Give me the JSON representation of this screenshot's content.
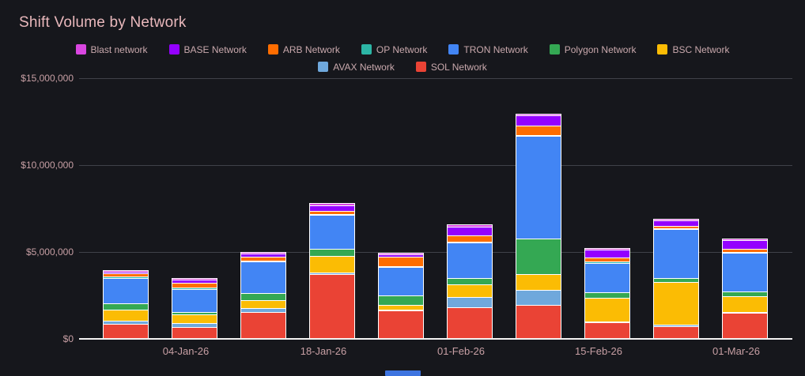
{
  "title": "Shift Volume by Network",
  "colors": {
    "background": "#16171c",
    "title_text": "#e9b8bc",
    "axis_text": "#c79fa4",
    "legend_text": "#c9a9ad",
    "gridline": "#404249",
    "axis_line": "#f4f2f2",
    "bar_border": "#ffffff",
    "scrollbar_thumb": "#3d74e0"
  },
  "legend": {
    "items": [
      {
        "label": "Blast network",
        "color": "#d946e0"
      },
      {
        "label": "BASE Network",
        "color": "#9400ff"
      },
      {
        "label": "ARB Network",
        "color": "#ff6d00"
      },
      {
        "label": "OP Network",
        "color": "#2cb5a5"
      },
      {
        "label": "TRON Network",
        "color": "#4285f4"
      },
      {
        "label": "Polygon Network",
        "color": "#34a853"
      },
      {
        "label": "BSC Network",
        "color": "#fbbc04"
      },
      {
        "label": "AVAX Network",
        "color": "#6fa8dc"
      },
      {
        "label": "SOL Network",
        "color": "#ea4335"
      }
    ]
  },
  "y_axis": {
    "tick_labels": [
      "$15,000,000",
      "$10,000,000",
      "$5,000,000",
      "$0"
    ],
    "tick_values": [
      15000000,
      10000000,
      5000000,
      0
    ]
  },
  "x_axis": {
    "tick_labels": [
      "04-Jan-26",
      "18-Jan-26",
      "01-Feb-26",
      "15-Feb-26",
      "01-Mar-26"
    ]
  },
  "chart_data": {
    "type": "bar",
    "stacked": true,
    "title": "Shift Volume by Network",
    "xlabel": "",
    "ylabel": "",
    "ylim": [
      0,
      15000000
    ],
    "grid": true,
    "legend_position": "top",
    "num_bars": 10,
    "tick_label_by_bar": [
      "",
      "04-Jan-26",
      "",
      "18-Jan-26",
      "",
      "01-Feb-26",
      "",
      "15-Feb-26",
      "",
      "01-Mar-26"
    ],
    "stack_order_bottom_to_top": [
      "SOL Network",
      "AVAX Network",
      "BSC Network",
      "Polygon Network",
      "TRON Network",
      "OP Network",
      "ARB Network",
      "BASE Network",
      "Blast network"
    ],
    "unit": "USD",
    "series": [
      {
        "name": "Blast network",
        "color": "#d946e0",
        "values": [
          60000,
          60000,
          60000,
          60000,
          50000,
          60000,
          70000,
          50000,
          50000,
          50000
        ]
      },
      {
        "name": "BASE Network",
        "color": "#9400ff",
        "values": [
          70000,
          150000,
          120000,
          270000,
          130000,
          470000,
          560000,
          400000,
          280000,
          460000
        ]
      },
      {
        "name": "ARB Network",
        "color": "#ff6d00",
        "values": [
          140000,
          210000,
          170000,
          130000,
          470000,
          310000,
          470000,
          190000,
          100000,
          100000
        ]
      },
      {
        "name": "OP Network",
        "color": "#2cb5a5",
        "values": [
          30000,
          30000,
          30000,
          30000,
          30000,
          30000,
          30000,
          30000,
          20000,
          20000
        ]
      },
      {
        "name": "TRON Network",
        "color": "#4285f4",
        "values": [
          1420000,
          1300000,
          1750000,
          1900000,
          1550000,
          2000000,
          5850000,
          1660000,
          2760000,
          2180000
        ]
      },
      {
        "name": "Polygon Network",
        "color": "#34a853",
        "values": [
          290000,
          100000,
          400000,
          360000,
          500000,
          310000,
          2000000,
          280000,
          190000,
          220000
        ]
      },
      {
        "name": "BSC Network",
        "color": "#fbbc04",
        "values": [
          600000,
          440000,
          400000,
          930000,
          230000,
          650000,
          860000,
          1290000,
          2410000,
          860000
        ]
      },
      {
        "name": "AVAX Network",
        "color": "#6fa8dc",
        "values": [
          160000,
          200000,
          150000,
          30000,
          30000,
          560000,
          800000,
          30000,
          30000,
          30000
        ]
      },
      {
        "name": "SOL Network",
        "color": "#ea4335",
        "values": [
          800000,
          620000,
          1520000,
          3680000,
          1580000,
          1780000,
          1930000,
          900000,
          680000,
          1440000
        ]
      }
    ]
  }
}
